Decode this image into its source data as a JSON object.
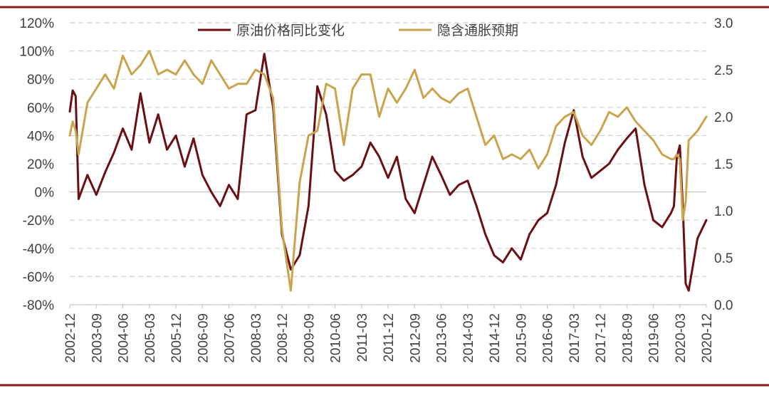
{
  "chart_data": {
    "type": "line",
    "y_left": {
      "ticks": [
        "120%",
        "100%",
        "80%",
        "60%",
        "40%",
        "20%",
        "0%",
        "-20%",
        "-40%",
        "-60%",
        "-80%"
      ],
      "range": [
        -80,
        120
      ],
      "unit": "%"
    },
    "y_right": {
      "ticks": [
        "3.0",
        "2.5",
        "2.0",
        "1.5",
        "1.0",
        "0.5",
        "0.0"
      ],
      "range": [
        0.0,
        3.0
      ]
    },
    "x_ticks": [
      "2002-12",
      "2003-09",
      "2004-06",
      "2005-03",
      "2005-12",
      "2006-09",
      "2007-06",
      "2008-03",
      "2008-12",
      "2009-09",
      "2010-06",
      "2011-03",
      "2011-12",
      "2012-09",
      "2013-06",
      "2014-03",
      "2014-12",
      "2015-09",
      "2016-06",
      "2017-03",
      "2017-12",
      "2018-09",
      "2019-06",
      "2020-03",
      "2020-12"
    ],
    "grid": "horizontal dashed",
    "legend_position": "top-center",
    "series": [
      {
        "name": "原油价格同比变化",
        "axis": "left",
        "color": "#6b0f14",
        "x": [
          "2002-12",
          "2003-01",
          "2003-02",
          "2003-03",
          "2003-06",
          "2003-09",
          "2003-12",
          "2004-03",
          "2004-06",
          "2004-09",
          "2004-12",
          "2005-03",
          "2005-06",
          "2005-09",
          "2005-12",
          "2006-03",
          "2006-06",
          "2006-09",
          "2006-12",
          "2007-03",
          "2007-06",
          "2007-09",
          "2007-12",
          "2008-03",
          "2008-06",
          "2008-09",
          "2008-12",
          "2009-03",
          "2009-06",
          "2009-09",
          "2009-12",
          "2010-03",
          "2010-06",
          "2010-09",
          "2010-12",
          "2011-03",
          "2011-06",
          "2011-09",
          "2011-12",
          "2012-03",
          "2012-06",
          "2012-09",
          "2012-12",
          "2013-03",
          "2013-06",
          "2013-09",
          "2013-12",
          "2014-03",
          "2014-06",
          "2014-09",
          "2014-12",
          "2015-03",
          "2015-06",
          "2015-09",
          "2015-12",
          "2016-03",
          "2016-06",
          "2016-09",
          "2016-12",
          "2017-03",
          "2017-06",
          "2017-09",
          "2017-12",
          "2018-03",
          "2018-06",
          "2018-09",
          "2018-12",
          "2019-03",
          "2019-06",
          "2019-09",
          "2019-12",
          "2020-01",
          "2020-02",
          "2020-03",
          "2020-04",
          "2020-05",
          "2020-06",
          "2020-09",
          "2020-12"
        ],
        "values": [
          57,
          72,
          68,
          -5,
          12,
          -2,
          14,
          28,
          45,
          30,
          70,
          35,
          55,
          30,
          40,
          18,
          38,
          12,
          0,
          -10,
          5,
          -5,
          55,
          58,
          98,
          60,
          -30,
          -55,
          -45,
          -10,
          75,
          55,
          15,
          8,
          12,
          18,
          35,
          25,
          10,
          25,
          -5,
          -15,
          5,
          25,
          12,
          -2,
          5,
          8,
          -10,
          -30,
          -45,
          -50,
          -40,
          -48,
          -30,
          -20,
          -15,
          5,
          35,
          58,
          25,
          10,
          15,
          20,
          30,
          38,
          45,
          5,
          -20,
          -25,
          -15,
          -10,
          25,
          33,
          -10,
          -65,
          -70,
          -33,
          -20
        ]
      },
      {
        "name": "隐含通胀预期",
        "axis": "right",
        "color": "#c9a34e",
        "x": [
          "2002-12",
          "2003-01",
          "2003-02",
          "2003-03",
          "2003-06",
          "2003-09",
          "2003-12",
          "2004-03",
          "2004-06",
          "2004-09",
          "2004-12",
          "2005-03",
          "2005-06",
          "2005-09",
          "2005-12",
          "2006-03",
          "2006-06",
          "2006-09",
          "2006-12",
          "2007-03",
          "2007-06",
          "2007-09",
          "2007-12",
          "2008-03",
          "2008-06",
          "2008-09",
          "2008-12",
          "2009-03",
          "2009-06",
          "2009-09",
          "2009-12",
          "2010-03",
          "2010-06",
          "2010-09",
          "2010-12",
          "2011-03",
          "2011-06",
          "2011-09",
          "2011-12",
          "2012-03",
          "2012-06",
          "2012-09",
          "2012-12",
          "2013-03",
          "2013-06",
          "2013-09",
          "2013-12",
          "2014-03",
          "2014-06",
          "2014-09",
          "2014-12",
          "2015-03",
          "2015-06",
          "2015-09",
          "2015-12",
          "2016-03",
          "2016-06",
          "2016-09",
          "2016-12",
          "2017-03",
          "2017-06",
          "2017-09",
          "2017-12",
          "2018-03",
          "2018-06",
          "2018-09",
          "2018-12",
          "2019-03",
          "2019-06",
          "2019-09",
          "2019-12",
          "2020-01",
          "2020-02",
          "2020-03",
          "2020-04",
          "2020-05",
          "2020-06",
          "2020-09",
          "2020-12"
        ],
        "values": [
          1.8,
          1.95,
          1.85,
          1.6,
          2.15,
          2.3,
          2.45,
          2.3,
          2.65,
          2.45,
          2.55,
          2.7,
          2.45,
          2.5,
          2.45,
          2.6,
          2.45,
          2.35,
          2.6,
          2.45,
          2.3,
          2.35,
          2.35,
          2.5,
          2.45,
          2.2,
          0.8,
          0.15,
          1.3,
          1.8,
          1.85,
          2.35,
          2.3,
          1.7,
          2.3,
          2.45,
          2.45,
          2.0,
          2.3,
          2.15,
          2.3,
          2.5,
          2.2,
          2.3,
          2.2,
          2.15,
          2.25,
          2.3,
          2.0,
          1.7,
          1.8,
          1.55,
          1.6,
          1.55,
          1.65,
          1.45,
          1.6,
          1.9,
          2.0,
          2.05,
          1.8,
          1.7,
          1.85,
          2.05,
          2.0,
          2.1,
          1.95,
          1.85,
          1.75,
          1.6,
          1.55,
          1.55,
          1.6,
          1.55,
          0.9,
          1.1,
          1.75,
          1.85,
          2.0
        ]
      }
    ]
  }
}
